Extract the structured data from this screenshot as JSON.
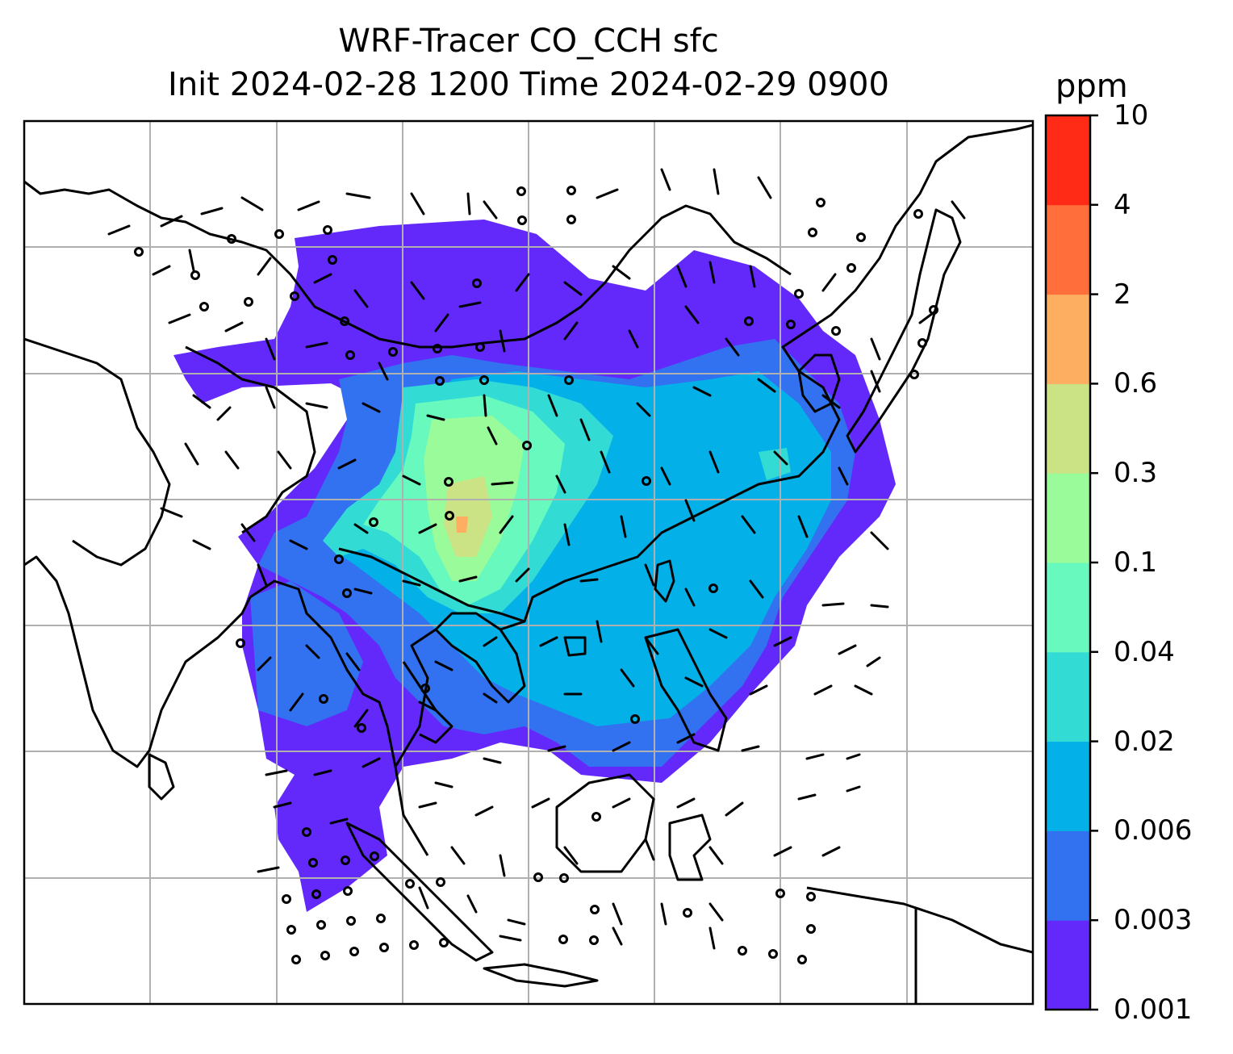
{
  "title": {
    "line1": "WRF-Tracer CO_CCH sfc",
    "line2": "Init 2024-02-28 1200 Time 2024-02-29 0900"
  },
  "colorbar": {
    "unit": "ppm",
    "levels": [
      "0.001",
      "0.003",
      "0.006",
      "0.02",
      "0.04",
      "0.1",
      "0.3",
      "0.6",
      "2",
      "4",
      "10"
    ],
    "colors": [
      "#6329fb",
      "#3271f0",
      "#04b0e8",
      "#32dcd5",
      "#67f9bd",
      "#99fb99",
      "#cbe285",
      "#fdae61",
      "#ff6e3b",
      "#ff2b17"
    ]
  },
  "map": {
    "field": "CO_CCH surface concentration",
    "overlay": [
      "coastlines",
      "country borders",
      "lat-lon gridlines",
      "wind barbs"
    ]
  }
}
